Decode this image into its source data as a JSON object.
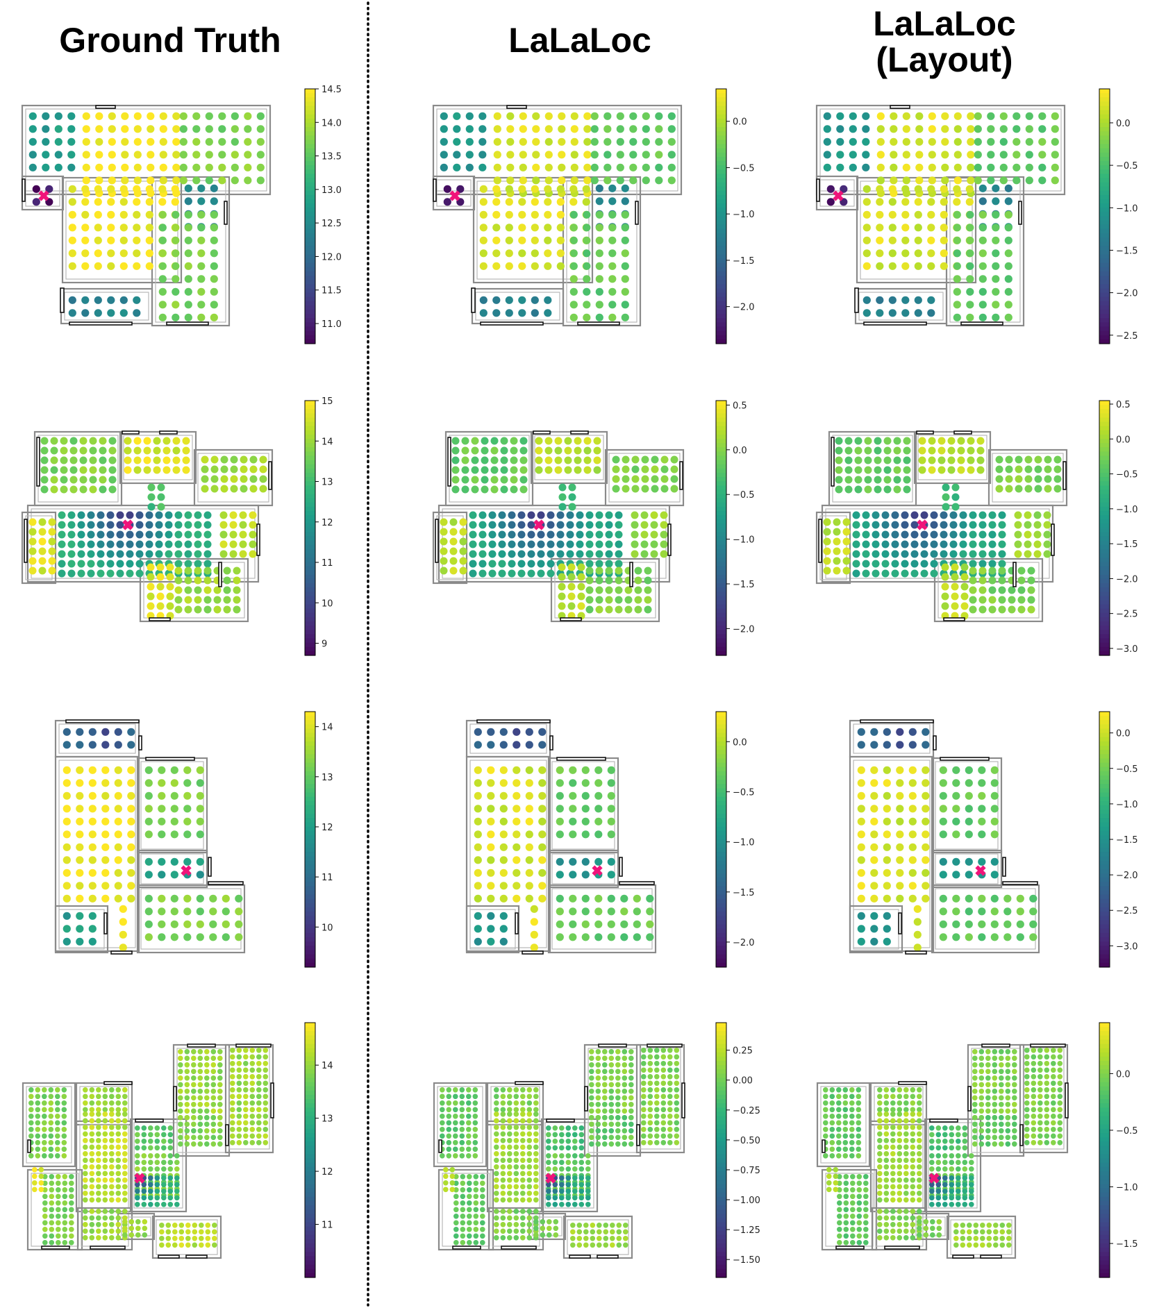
{
  "columns": [
    {
      "title": "Ground Truth"
    },
    {
      "title": "LaLaLoc"
    },
    {
      "title_line1": "LaLaLoc",
      "title_line2": "(Layout)"
    }
  ],
  "colors": {
    "viridis": [
      "#440154",
      "#482878",
      "#3e4989",
      "#31688e",
      "#26828e",
      "#1f9e89",
      "#35b779",
      "#6ece58",
      "#b5de2b",
      "#fde725"
    ],
    "marker": "#f0147a",
    "wall": "#8a8a8a",
    "divider": "#000000"
  },
  "chart_data": [
    {
      "type": "heatmap",
      "column": "Ground Truth",
      "row": 1,
      "colorbar_range": [
        10.7,
        14.5
      ],
      "colorbar_ticks": [
        "14.5",
        "14.0",
        "13.5",
        "13.0",
        "12.5",
        "12.0",
        "11.5",
        "11.0"
      ],
      "colorbar_tick_values": [
        14.5,
        14.0,
        13.5,
        13.0,
        12.5,
        12.0,
        11.5,
        11.0
      ]
    },
    {
      "type": "heatmap",
      "column": "LaLaLoc",
      "row": 1,
      "colorbar_range": [
        -2.4,
        0.35
      ],
      "colorbar_ticks": [
        "0.0",
        "−0.5",
        "−1.0",
        "−1.5",
        "−2.0"
      ],
      "colorbar_tick_values": [
        0.0,
        -0.5,
        -1.0,
        -1.5,
        -2.0
      ]
    },
    {
      "type": "heatmap",
      "column": "LaLaLoc (Layout)",
      "row": 1,
      "colorbar_range": [
        -2.6,
        0.4
      ],
      "colorbar_ticks": [
        "0.0",
        "−0.5",
        "−1.0",
        "−1.5",
        "−2.0",
        "−2.5"
      ],
      "colorbar_tick_values": [
        0.0,
        -0.5,
        -1.0,
        -1.5,
        -2.0,
        -2.5
      ]
    },
    {
      "type": "heatmap",
      "column": "Ground Truth",
      "row": 2,
      "colorbar_range": [
        8.7,
        15.0
      ],
      "colorbar_ticks": [
        "15",
        "14",
        "13",
        "12",
        "11",
        "10",
        "9"
      ],
      "colorbar_tick_values": [
        15,
        14,
        13,
        12,
        11,
        10,
        9
      ]
    },
    {
      "type": "heatmap",
      "column": "LaLaLoc",
      "row": 2,
      "colorbar_range": [
        -2.3,
        0.55
      ],
      "colorbar_ticks": [
        "0.5",
        "0.0",
        "−0.5",
        "−1.0",
        "−1.5",
        "−2.0"
      ],
      "colorbar_tick_values": [
        0.5,
        0.0,
        -0.5,
        -1.0,
        -1.5,
        -2.0
      ]
    },
    {
      "type": "heatmap",
      "column": "LaLaLoc (Layout)",
      "row": 2,
      "colorbar_range": [
        -3.1,
        0.55
      ],
      "colorbar_ticks": [
        "0.5",
        "0.0",
        "−0.5",
        "−1.0",
        "−1.5",
        "−2.0",
        "−2.5",
        "−3.0"
      ],
      "colorbar_tick_values": [
        0.5,
        0.0,
        -0.5,
        -1.0,
        -1.5,
        -2.0,
        -2.5,
        -3.0
      ]
    },
    {
      "type": "heatmap",
      "column": "Ground Truth",
      "row": 3,
      "colorbar_range": [
        9.2,
        14.3
      ],
      "colorbar_ticks": [
        "14",
        "13",
        "12",
        "11",
        "10"
      ],
      "colorbar_tick_values": [
        14,
        13,
        12,
        11,
        10
      ]
    },
    {
      "type": "heatmap",
      "column": "LaLaLoc",
      "row": 3,
      "colorbar_range": [
        -2.25,
        0.3
      ],
      "colorbar_ticks": [
        "0.0",
        "−0.5",
        "−1.0",
        "−1.5",
        "−2.0"
      ],
      "colorbar_tick_values": [
        0.0,
        -0.5,
        -1.0,
        -1.5,
        -2.0
      ]
    },
    {
      "type": "heatmap",
      "column": "LaLaLoc (Layout)",
      "row": 3,
      "colorbar_range": [
        -3.3,
        0.3
      ],
      "colorbar_ticks": [
        "0.0",
        "−0.5",
        "−1.0",
        "−1.5",
        "−2.0",
        "−2.5",
        "−3.0"
      ],
      "colorbar_tick_values": [
        0.0,
        -0.5,
        -1.0,
        -1.5,
        -2.0,
        -2.5,
        -3.0
      ]
    },
    {
      "type": "heatmap",
      "column": "Ground Truth",
      "row": 4,
      "colorbar_range": [
        10.0,
        14.8
      ],
      "colorbar_ticks": [
        "14",
        "13",
        "12",
        "11"
      ],
      "colorbar_tick_values": [
        14,
        13,
        12,
        11
      ]
    },
    {
      "type": "heatmap",
      "column": "LaLaLoc",
      "row": 4,
      "colorbar_range": [
        -1.65,
        0.48
      ],
      "colorbar_ticks": [
        "0.25",
        "0.00",
        "−0.25",
        "−0.50",
        "−0.75",
        "−1.00",
        "−1.25",
        "−1.50"
      ],
      "colorbar_tick_values": [
        0.25,
        0.0,
        -0.25,
        -0.5,
        -0.75,
        -1.0,
        -1.25,
        -1.5
      ]
    },
    {
      "type": "heatmap",
      "column": "LaLaLoc (Layout)",
      "row": 4,
      "colorbar_range": [
        -1.8,
        0.45
      ],
      "colorbar_ticks": [
        "0.0",
        "−0.5",
        "−1.0",
        "−1.5"
      ],
      "colorbar_tick_values": [
        0.0,
        -0.5,
        -1.0,
        -1.5
      ]
    }
  ]
}
